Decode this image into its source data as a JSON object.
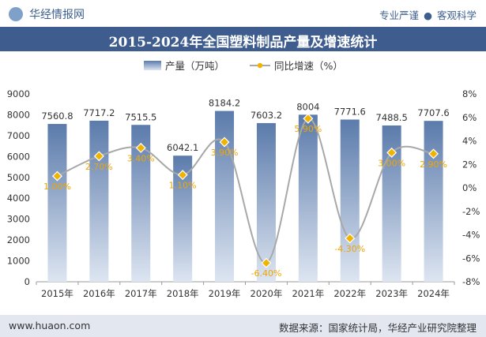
{
  "header": {
    "logo_text": "华经情报网",
    "tag_1": "专业严谨",
    "tag_2": "客观科学"
  },
  "title": "2015-2024年全国塑料制品产量及增速统计",
  "footer": {
    "website": "www.huaon.com",
    "source": "数据来源：国家统计局，华经产业研究院整理"
  },
  "colors": {
    "bar_top": "#5b7bab",
    "bar_bottom": "#dde5f1",
    "line": "#a8a8a8",
    "marker": "#f0b400",
    "title_band": "#3e5c8e"
  },
  "chart_data": {
    "type": "bar+line",
    "categories": [
      "2015年",
      "2016年",
      "2017年",
      "2018年",
      "2019年",
      "2020年",
      "2021年",
      "2022年",
      "2023年",
      "2024年"
    ],
    "series": [
      {
        "name": "产量（万吨）",
        "type": "bar",
        "axis": "left",
        "values": [
          7560.8,
          7717.2,
          7515.5,
          6042.1,
          8184.2,
          7603.2,
          8004,
          7771.6,
          7488.5,
          7707.6
        ],
        "labels": [
          "7560.8",
          "7717.2",
          "7515.5",
          "6042.1",
          "8184.2",
          "7603.2",
          "8004",
          "7771.6",
          "7488.5",
          "7707.6"
        ]
      },
      {
        "name": "同比增速（%）",
        "type": "line",
        "axis": "right",
        "values": [
          1.0,
          2.7,
          3.4,
          1.1,
          3.9,
          -6.4,
          5.9,
          -4.3,
          3.0,
          2.9
        ],
        "labels": [
          "1.00%",
          "2.70%",
          "3.40%",
          "1.10%",
          "3.90%",
          "-6.40%",
          "5.90%",
          "-4.30%",
          "3.00%",
          "2.90%"
        ]
      }
    ],
    "left_axis": {
      "min": 0,
      "max": 9000,
      "step": 1000,
      "ticks": [
        "0",
        "1000",
        "2000",
        "3000",
        "4000",
        "5000",
        "6000",
        "7000",
        "8000",
        "9000"
      ]
    },
    "right_axis": {
      "min": -8,
      "max": 8,
      "step": 2,
      "ticks": [
        "-8%",
        "-6%",
        "-4%",
        "-2%",
        "0%",
        "2%",
        "4%",
        "6%",
        "8%"
      ]
    },
    "legend_position": "top-center",
    "grid": false
  }
}
